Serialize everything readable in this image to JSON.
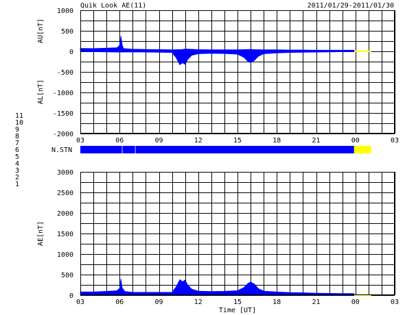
{
  "header": {
    "title": "Quik Look AE(11)",
    "date_range": "2011/01/29-2011/01/30"
  },
  "colors": {
    "data": "#0000ff",
    "data_gap": "#ffff00",
    "station_legend": [
      "#0000aa",
      "#aa00aa",
      "#0088dd",
      "#00aaaa",
      "#cccccc",
      "#dd0000",
      "#00cc00",
      "#cccc00",
      "#2200cc",
      "#ee00ee",
      "#00ffff"
    ]
  },
  "station_legend": [
    "1",
    "2",
    "3",
    "4",
    "5",
    "6",
    "7",
    "8",
    "9",
    "10",
    "11"
  ],
  "nstn_label": "N.STN",
  "chart_data": [
    {
      "type": "area",
      "name": "AU/AL",
      "ylabel_top": "AU[nT]",
      "ylabel_bottom": "AL[nT]",
      "ylim": [
        -2000,
        1000
      ],
      "yticks": [
        "1000",
        "500",
        "0",
        "-500",
        "-1000",
        "-1500",
        "-2000"
      ],
      "xticks": [
        "03",
        "06",
        "09",
        "12",
        "15",
        "18",
        "21",
        "00",
        "03"
      ],
      "xlim_hours": [
        3,
        27
      ],
      "data_end_hour": 23.9,
      "gap_end_hour": 25.2,
      "au": {
        "x": [
          3,
          4,
          5,
          5.8,
          6.0,
          6.1,
          6.2,
          6.3,
          7,
          8,
          9,
          10,
          10.5,
          10.8,
          11.0,
          11.3,
          12,
          13,
          14,
          15,
          15.5,
          16,
          16.3,
          17,
          18,
          19,
          20,
          21,
          22,
          23,
          23.9
        ],
        "y": [
          75,
          70,
          80,
          90,
          150,
          380,
          160,
          70,
          55,
          50,
          45,
          40,
          45,
          50,
          60,
          55,
          45,
          40,
          40,
          40,
          45,
          50,
          45,
          40,
          40,
          35,
          35,
          30,
          30,
          30,
          30
        ]
      },
      "al": {
        "x": [
          3,
          4,
          5,
          6,
          7,
          8,
          9,
          10,
          10.3,
          10.6,
          10.8,
          11.0,
          11.2,
          11.5,
          12,
          13,
          14,
          15,
          15.5,
          15.8,
          16.0,
          16.3,
          16.6,
          17,
          18,
          19,
          20,
          21,
          22,
          23,
          23.9
        ],
        "y": [
          0,
          -10,
          -15,
          -20,
          -15,
          -20,
          -25,
          -30,
          -150,
          -330,
          -280,
          -320,
          -200,
          -100,
          -60,
          -50,
          -55,
          -70,
          -150,
          -250,
          -280,
          -220,
          -120,
          -60,
          -40,
          -30,
          -25,
          -20,
          -15,
          -10,
          -10
        ]
      }
    },
    {
      "type": "bar",
      "name": "N.STN",
      "segments": [
        {
          "start_hour": 3,
          "end_hour": 23.9,
          "color": "#0000ff"
        },
        {
          "start_hour": 23.9,
          "end_hour": 25.2,
          "color": "#ffff00"
        }
      ]
    },
    {
      "type": "area",
      "name": "AE",
      "ylabel": "AE[nT]",
      "xlabel": "Time [UT]",
      "ylim": [
        0,
        3000
      ],
      "yticks": [
        "3000",
        "2500",
        "2000",
        "1500",
        "1000",
        "500",
        "0"
      ],
      "xticks": [
        "03",
        "06",
        "09",
        "12",
        "15",
        "18",
        "21",
        "00",
        "03"
      ],
      "xlim_hours": [
        3,
        27
      ],
      "data_end_hour": 23.9,
      "gap_end_hour": 25.2,
      "ae": {
        "x": [
          3,
          4,
          5,
          5.8,
          6.0,
          6.1,
          6.2,
          6.4,
          7,
          8,
          9,
          10,
          10.3,
          10.6,
          10.8,
          11.0,
          11.2,
          11.5,
          12,
          13,
          14,
          15,
          15.5,
          15.8,
          16.0,
          16.3,
          16.6,
          17,
          18,
          19,
          20,
          21,
          22,
          23,
          23.9
        ],
        "y": [
          80,
          80,
          95,
          110,
          170,
          400,
          180,
          90,
          70,
          70,
          70,
          70,
          200,
          380,
          330,
          370,
          250,
          150,
          100,
          90,
          95,
          110,
          190,
          290,
          320,
          270,
          160,
          100,
          80,
          65,
          60,
          50,
          45,
          40,
          40
        ]
      }
    }
  ]
}
